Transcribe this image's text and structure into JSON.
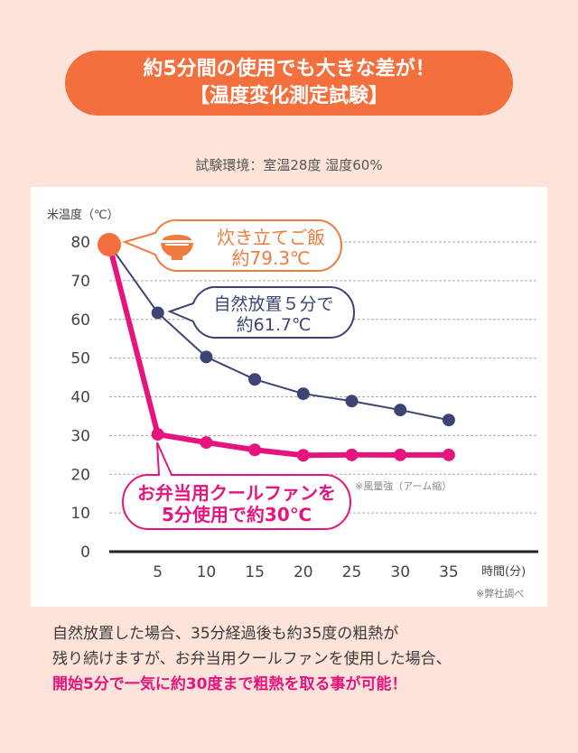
{
  "header": {
    "title_line1": "約5分間の使用でも大きな差が！",
    "title_line2": "【温度変化測定試験】",
    "environment": "試験環境：室温28度 湿度60%"
  },
  "chart_data": {
    "type": "line",
    "ylabel": "米温度（℃）",
    "xlabel": "時間(分)",
    "source_note": "※弊社調べ",
    "x": [
      0,
      5,
      10,
      15,
      20,
      25,
      30,
      35
    ],
    "x_ticks": [
      "5",
      "10",
      "15",
      "20",
      "25",
      "30",
      "35"
    ],
    "y_ticks": [
      "0",
      "10",
      "20",
      "30",
      "40",
      "50",
      "60",
      "70",
      "80"
    ],
    "ylim": [
      0,
      80
    ],
    "grid": true,
    "series": [
      {
        "values": [
          79.3,
          61.7,
          50.3,
          44.5,
          40.8,
          38.9,
          36.6,
          34.0
        ],
        "color": "#3d4474"
      },
      {
        "values": [
          79.3,
          30.3,
          28.2,
          26.3,
          24.9,
          25.0,
          25.0,
          25.0
        ],
        "color": "#e6157d"
      }
    ],
    "start_color": "#f36f3d",
    "annotations": {
      "start": {
        "line1": "炊き立てご飯",
        "line2": "約79.3℃",
        "icon": "rice-bowl-icon",
        "color": "#f07b3f"
      },
      "natural": {
        "line1": "自然放置５分で",
        "line2": "約61.7℃",
        "color": "#3d4474"
      },
      "fan": {
        "line1": "お弁当用クールファンを",
        "line2": "5分使用で約30℃",
        "color": "#e6157d"
      },
      "fan_note": "※風量強（アーム縮）"
    }
  },
  "description": {
    "line1": "自然放置した場合、35分経過後も約35度の粗熱が",
    "line2": "残り続けますが、お弁当用クールファンを使用した場合、",
    "line3": "開始5分で一気に約30度まで粗熱を取る事が可能！"
  }
}
